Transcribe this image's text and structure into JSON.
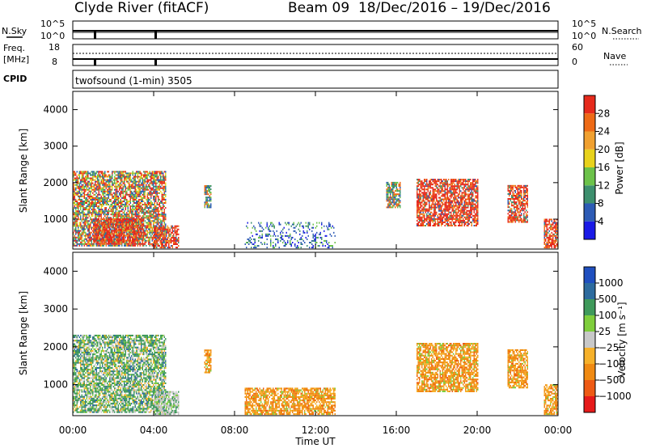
{
  "header": {
    "site": "Clyde River (fitACF)",
    "beam": "Beam 09",
    "dates": "18/Dec/2016 – 19/Dec/2016"
  },
  "top_panels": {
    "nsky_label": "N.Sky",
    "nsky_ticks_left": [
      "10^5",
      "10^0"
    ],
    "nsky_ticks_right": [
      "10^5",
      "10^0"
    ],
    "nsearch_label": "N.Search",
    "freq_label": "Freq.",
    "freq_unit": "[MHz]",
    "freq_ticks": [
      "18",
      "8"
    ],
    "nave_ticks": [
      "60",
      "0"
    ],
    "nave_label": "Nave",
    "cpid_label": "CPID",
    "cpid_text": "twofsound (1-min) 3505"
  },
  "chart_data": [
    {
      "type": "heatmap",
      "name": "power",
      "xlabel": "",
      "ylabel": "Slant Range [km]",
      "x_ticks": [
        "00:00",
        "04:00",
        "08:00",
        "12:00",
        "16:00",
        "20:00",
        "00:00"
      ],
      "x_range_hours": [
        0,
        24
      ],
      "y_range": [
        180,
        4500
      ],
      "y_ticks": [
        1000,
        2000,
        3000,
        4000
      ],
      "colorbar": {
        "label": "Power [dB]",
        "ticks": [
          "4",
          "8",
          "12",
          "16",
          "20",
          "24",
          "28"
        ],
        "colors": [
          "#1a1ae6",
          "#2d5bb5",
          "#3d8f6e",
          "#6cc24a",
          "#e8d21c",
          "#f0a030",
          "#ee6a16",
          "#e62a1c"
        ]
      },
      "echo_regions": [
        {
          "t": [
            0.0,
            4.6
          ],
          "range": [
            250,
            2300
          ],
          "level": "mixed-high"
        },
        {
          "t": [
            1.0,
            3.5
          ],
          "range": [
            300,
            1000
          ],
          "level": "high"
        },
        {
          "t": [
            4.0,
            5.2
          ],
          "range": [
            200,
            800
          ],
          "level": "high"
        },
        {
          "t": [
            6.5,
            6.8
          ],
          "range": [
            1300,
            1900
          ],
          "level": "medium"
        },
        {
          "t": [
            8.5,
            13.0
          ],
          "range": [
            200,
            900
          ],
          "level": "low"
        },
        {
          "t": [
            15.5,
            16.2
          ],
          "range": [
            1300,
            2000
          ],
          "level": "medium"
        },
        {
          "t": [
            17.0,
            20.0
          ],
          "range": [
            800,
            2100
          ],
          "level": "high"
        },
        {
          "t": [
            21.5,
            22.5
          ],
          "range": [
            900,
            1900
          ],
          "level": "high"
        },
        {
          "t": [
            23.3,
            24.0
          ],
          "range": [
            200,
            1000
          ],
          "level": "high"
        }
      ]
    },
    {
      "type": "heatmap",
      "name": "velocity",
      "xlabel": "Time UT",
      "ylabel": "Slant Range [km]",
      "x_ticks": [
        "00:00",
        "04:00",
        "08:00",
        "12:00",
        "16:00",
        "20:00",
        "00:00"
      ],
      "x_range_hours": [
        0,
        24
      ],
      "y_range": [
        180,
        4500
      ],
      "y_ticks": [
        1000,
        2000,
        3000,
        4000
      ],
      "colorbar": {
        "label": "Velocity [m s⁻¹]",
        "ticks": [
          "1000",
          "500",
          "100",
          "25",
          "−25",
          "−100",
          "−500",
          "−1000"
        ],
        "colors": [
          "#1f4fbf",
          "#2d6b9e",
          "#3f9a5b",
          "#7fce3c",
          "#c8c8c8",
          "#f6b12a",
          "#f08a12",
          "#ee5a14",
          "#e61a1a"
        ]
      },
      "echo_regions": [
        {
          "t": [
            0.0,
            4.6
          ],
          "range": [
            250,
            2300
          ],
          "level": "green-gray"
        },
        {
          "t": [
            4.0,
            5.2
          ],
          "range": [
            200,
            800
          ],
          "level": "gray"
        },
        {
          "t": [
            6.5,
            6.8
          ],
          "range": [
            1300,
            1900
          ],
          "level": "orange"
        },
        {
          "t": [
            8.5,
            13.0
          ],
          "range": [
            200,
            900
          ],
          "level": "orange"
        },
        {
          "t": [
            17.0,
            20.0
          ],
          "range": [
            800,
            2100
          ],
          "level": "orange"
        },
        {
          "t": [
            21.5,
            22.5
          ],
          "range": [
            900,
            1900
          ],
          "level": "orange"
        },
        {
          "t": [
            23.3,
            24.0
          ],
          "range": [
            200,
            1000
          ],
          "level": "orange"
        }
      ]
    }
  ]
}
